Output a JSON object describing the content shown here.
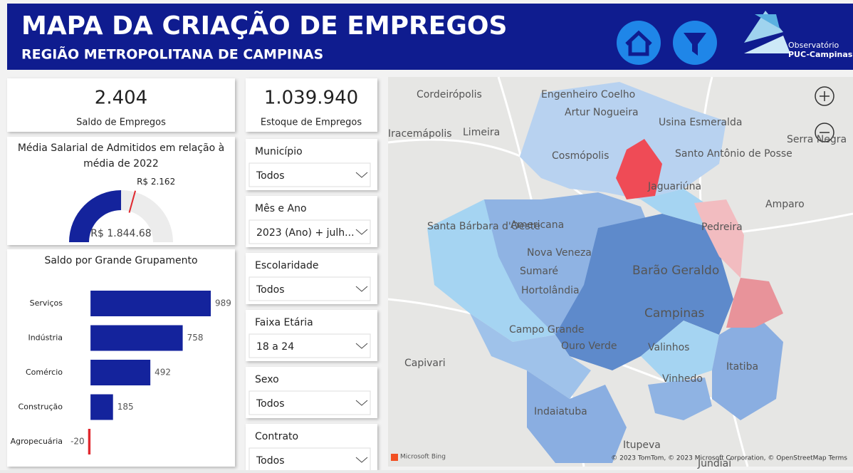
{
  "header": {
    "title": "MAPA DA CRIAÇÃO DE EMPREGOS",
    "subtitle": "REGIÃO METROPOLITANA DE CAMPINAS",
    "logo": [
      "Observatório",
      "PUC-Campinas"
    ]
  },
  "kpis": [
    {
      "value": "2.404",
      "label": "Saldo de Empregos"
    },
    {
      "value": "1.039.940",
      "label": "Estoque de Empregos"
    }
  ],
  "gauge": {
    "title": [
      "Média Salarial de Admitidos em relação à",
      "média de 2022"
    ],
    "value": 1844.68,
    "value_label": "R$ 1.844.68",
    "target": 2162,
    "target_label": "R$ 2.162",
    "range": [
      0,
      3688
    ]
  },
  "chart_data": {
    "type": "bar",
    "title": "Saldo por Grande Grupamento",
    "categories": [
      "Serviços",
      "Indústria",
      "Comércio",
      "Construção",
      "Agropecuária"
    ],
    "values": [
      989,
      758,
      492,
      185,
      -20
    ],
    "color": "#14239c",
    "negative_color": "#e0282e",
    "xlim": [
      -30,
      1100
    ]
  },
  "slicers": [
    {
      "label": "Município",
      "value": "Todos"
    },
    {
      "label": "Mês e Ano",
      "value": "2023 (Ano) + julh..."
    },
    {
      "label": "Escolaridade",
      "value": "Todos"
    },
    {
      "label": "Faixa Etária",
      "value": "18 a 24"
    },
    {
      "label": "Sexo",
      "value": "Todos"
    },
    {
      "label": "Contrato",
      "value": "Todos"
    }
  ],
  "map": {
    "places": [
      "Cordeirópolis",
      "Engenheiro Coelho",
      "Artur Nogueira",
      "Usina Esmeralda",
      "Limeira",
      "Iracemápolis",
      "Cosmópolis",
      "Santo Antônio de Posse",
      "Serra Negra",
      "Jaguariúna",
      "Amparo",
      "Pedreira",
      "Santa Bárbara d'Oeste",
      "Americana",
      "Nova Veneza",
      "Sumaré",
      "Barão Geraldo",
      "Hortolândia",
      "Campinas",
      "Campo Grande",
      "Ouro Verde",
      "Valinhos",
      "Capivari",
      "Vinhedo",
      "Itatiba",
      "Indaiatuba",
      "Itupeva",
      "Jundiaí"
    ],
    "brand": "Microsoft Bing",
    "attribution": "© 2023 TomTom, © 2023 Microsoft Corporation, © OpenStreetMap  Terms"
  }
}
